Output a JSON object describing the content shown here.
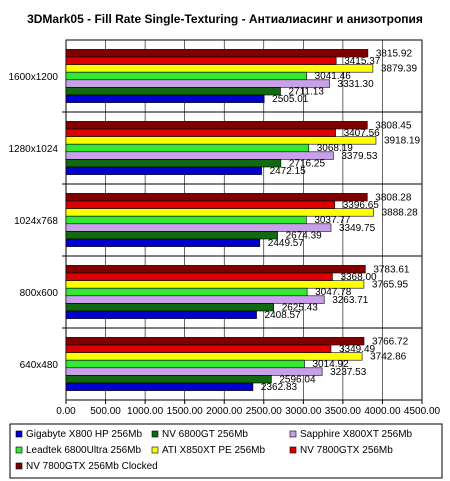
{
  "chart_data": {
    "type": "bar",
    "orientation": "horizontal",
    "title": "3DMark05 - Fill Rate Single-Texturing - Антиалиасинг и анизотропия",
    "xlabel": "",
    "ylabel": "",
    "xlim": [
      0,
      4500
    ],
    "x_ticks": [
      "0.00",
      "500.00",
      "1000.00",
      "1500.00",
      "2000.00",
      "2500.00",
      "3000.00",
      "3500.00",
      "4000.00",
      "4500.00"
    ],
    "grid": true,
    "legend_position": "bottom",
    "categories": [
      "1600x1200",
      "1280x1024",
      "1024x768",
      "800x600",
      "640x480"
    ],
    "series": [
      {
        "name": "Gigabyte X800 HP 256Mb",
        "color": "#0000cc",
        "values": [
          2505.01,
          2472.15,
          2449.57,
          2408.57,
          2362.83
        ],
        "labels": [
          "2505.01",
          "2472.15",
          "2449.57",
          "2408.57",
          "2362.83"
        ]
      },
      {
        "name": "NV 6800GT 256Mb",
        "color": "#106a10",
        "values": [
          2711.13,
          2716.25,
          2674.39,
          2625.43,
          2596.04
        ],
        "labels": [
          "2711.13",
          "2716.25",
          "2674.39",
          "2625.43",
          "2596.04"
        ]
      },
      {
        "name": "Sapphire X800XT 256Mb",
        "color": "#c8a0e8",
        "values": [
          3331.3,
          3379.53,
          3349.75,
          3263.71,
          3237.53
        ],
        "labels": [
          "3331.30",
          "3379.53",
          "3349.75",
          "3263.71",
          "3237.53"
        ]
      },
      {
        "name": "Leadtek 6800Ultra 256Mb",
        "color": "#33e833",
        "values": [
          3041.46,
          3068.19,
          3037.77,
          3047.78,
          3014.92
        ],
        "labels": [
          "3041.46",
          "3068.19",
          "3037.77",
          "3047.78",
          "3014.92"
        ]
      },
      {
        "name": "ATI X850XT PE 256Mb",
        "color": "#ffff00",
        "values": [
          3879.39,
          3918.19,
          3888.28,
          3765.95,
          3742.86
        ],
        "labels": [
          "3879.39",
          "3918.19",
          "3888.28",
          "3765.95",
          "3742.86"
        ]
      },
      {
        "name": "NV 7800GTX 256Mb",
        "color": "#dd0000",
        "values": [
          3415.37,
          3407.56,
          3396.65,
          3368.0,
          3349.49
        ],
        "labels": [
          "3415.37",
          "3407.56",
          "3396.65",
          "3368.00",
          "3349.49"
        ]
      },
      {
        "name": "NV 7800GTX 256Mb Clocked",
        "color": "#800000",
        "values": [
          3815.92,
          3808.45,
          3808.28,
          3783.61,
          3766.72
        ],
        "labels": [
          "3815.92",
          "3808.45",
          "3808.28",
          "3783.61",
          "3766.72"
        ]
      }
    ]
  }
}
